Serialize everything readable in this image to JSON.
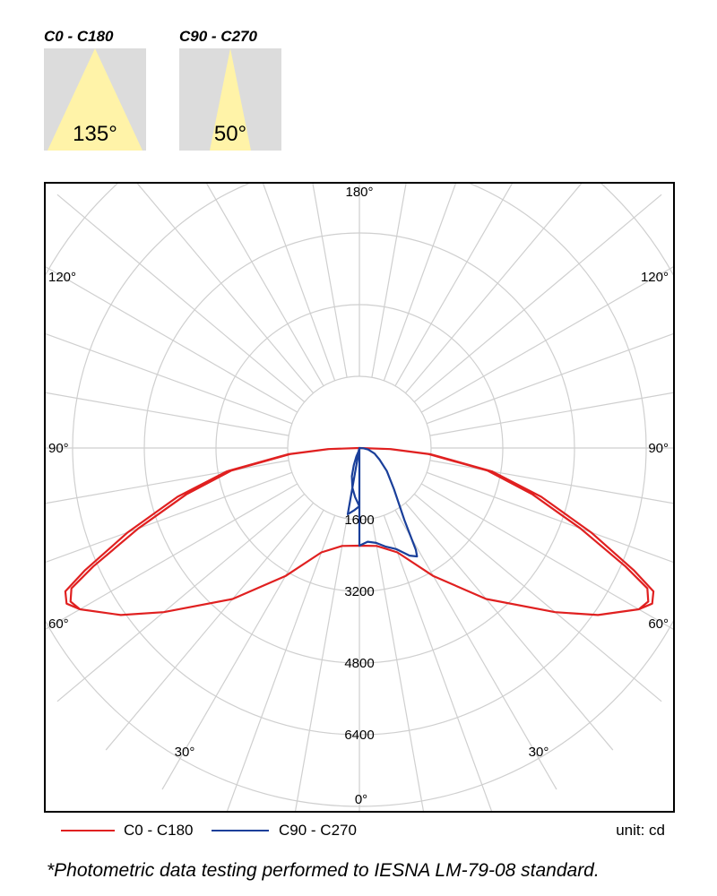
{
  "beam_panels": [
    {
      "title": "C0 - C180",
      "angle_label": "135°",
      "beam_angle_deg": 135
    },
    {
      "title": "C90 - C270",
      "angle_label": "50°",
      "beam_angle_deg": 50
    }
  ],
  "colors": {
    "beam_fill": "#fff3a8",
    "beam_background": "#dcdcdc",
    "grid": "#cfcfcf",
    "c0_series": "#e02020",
    "c90_series": "#1a3f9a"
  },
  "chart_data": {
    "type": "polar",
    "angle_labels": [
      {
        "text": "180°",
        "deg": 180,
        "side": "center"
      },
      {
        "text": "120°",
        "deg": 120,
        "side": "left"
      },
      {
        "text": "120°",
        "deg": 120,
        "side": "right"
      },
      {
        "text": "90°",
        "deg": 90,
        "side": "left"
      },
      {
        "text": "90°",
        "deg": 90,
        "side": "right"
      },
      {
        "text": "60°",
        "deg": 60,
        "side": "left"
      },
      {
        "text": "60°",
        "deg": 60,
        "side": "right"
      },
      {
        "text": "30°",
        "deg": 30,
        "side": "left"
      },
      {
        "text": "30°",
        "deg": 30,
        "side": "right"
      },
      {
        "text": "0°",
        "deg": 0,
        "side": "center"
      }
    ],
    "radial_ticks": [
      "1600",
      "3200",
      "4800",
      "6400"
    ],
    "radial_range": [
      0,
      8800
    ],
    "ring_values": [
      1600,
      3200,
      4800,
      6400,
      8000
    ],
    "spoke_step_deg": 10,
    "grid": true,
    "legend_position": "bottom",
    "unit": "unit: cd",
    "series": [
      {
        "name": "C0 - C180",
        "outer": [
          [
            0,
            2180
          ],
          [
            10,
            2220
          ],
          [
            20,
            2480
          ],
          [
            30,
            3300
          ],
          [
            40,
            4400
          ],
          [
            50,
            5700
          ],
          [
            55,
            6500
          ],
          [
            60,
            7200
          ],
          [
            62,
            7400
          ],
          [
            64,
            7300
          ],
          [
            66,
            6700
          ],
          [
            70,
            5500
          ],
          [
            75,
            4200
          ],
          [
            80,
            3000
          ],
          [
            85,
            1600
          ],
          [
            88,
            700
          ],
          [
            90,
            0
          ]
        ],
        "inner": [
          [
            0,
            2180
          ],
          [
            10,
            2220
          ],
          [
            20,
            2480
          ],
          [
            30,
            3300
          ],
          [
            40,
            4400
          ],
          [
            50,
            5700
          ],
          [
            55,
            6500
          ],
          [
            60,
            7200
          ],
          [
            62,
            7300
          ],
          [
            64,
            7150
          ],
          [
            66,
            6500
          ],
          [
            70,
            5250
          ],
          [
            75,
            4000
          ],
          [
            80,
            2900
          ],
          [
            85,
            1550
          ],
          [
            88,
            680
          ],
          [
            90,
            0
          ]
        ]
      },
      {
        "name": "C90 - C270",
        "points": [
          [
            0,
            2180
          ],
          [
            5,
            2100
          ],
          [
            10,
            2150
          ],
          [
            15,
            2280
          ],
          [
            20,
            2400
          ],
          [
            25,
            2650
          ],
          [
            28,
            2740
          ],
          [
            29,
            2600
          ],
          [
            32,
            1900
          ],
          [
            40,
            1200
          ],
          [
            50,
            800
          ],
          [
            60,
            520
          ],
          [
            70,
            360
          ],
          [
            80,
            200
          ],
          [
            86,
            90
          ],
          [
            90,
            0
          ],
          [
            -10,
            1500
          ],
          [
            -5,
            1400
          ],
          [
            0,
            1300
          ],
          [
            -5,
            1100
          ],
          [
            -10,
            900
          ],
          [
            -15,
            650
          ],
          [
            -18,
            400
          ],
          [
            -20,
            200
          ],
          [
            -15,
            80
          ],
          [
            0,
            0
          ]
        ]
      }
    ]
  },
  "footnote": "*Photometric data testing performed to IESNA LM-79-08 standard."
}
